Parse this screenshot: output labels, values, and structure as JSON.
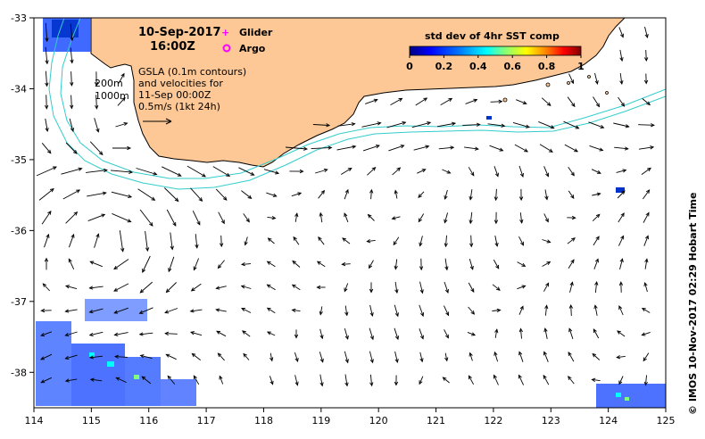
{
  "title": {
    "date": "10-Sep-2017",
    "time": "16:00Z"
  },
  "legend": {
    "glider": "Glider",
    "argo": "Argo",
    "glider_color": "#ff00ff",
    "argo_color": "#ff00ff"
  },
  "info": {
    "line1": "GSLA (0.1m contours)",
    "line2": "and velocities for",
    "line3": "11-Sep 00:00Z",
    "line4": "0.5m/s (1kt 24h)"
  },
  "isobaths": {
    "label_200": "200m",
    "label_1000": "1000m",
    "color": "#33cccc"
  },
  "colorbar": {
    "title": "std dev of 4hr SST comp",
    "ticks": [
      "0",
      "0.2",
      "0.4",
      "0.6",
      "0.8",
      "1"
    ],
    "colors": [
      "#00007f",
      "#0000ff",
      "#007fff",
      "#00ffff",
      "#7fff7f",
      "#ffff00",
      "#ff7f00",
      "#ff0000",
      "#7f0000"
    ]
  },
  "credit": "© IMOS 10-Nov-2017 02:29 Hobart Time",
  "axes": {
    "lon_ticks": [
      "114",
      "115",
      "116",
      "117",
      "118",
      "119",
      "120",
      "121",
      "122",
      "123",
      "124",
      "125"
    ],
    "lat_ticks": [
      "-33",
      "-34",
      "-35",
      "-36",
      "-37",
      "-38"
    ],
    "lon_range": [
      114,
      125
    ],
    "lat_range": [
      -38.5,
      -33
    ]
  },
  "colors": {
    "land": "#fdc896",
    "arrow": "#000000"
  }
}
